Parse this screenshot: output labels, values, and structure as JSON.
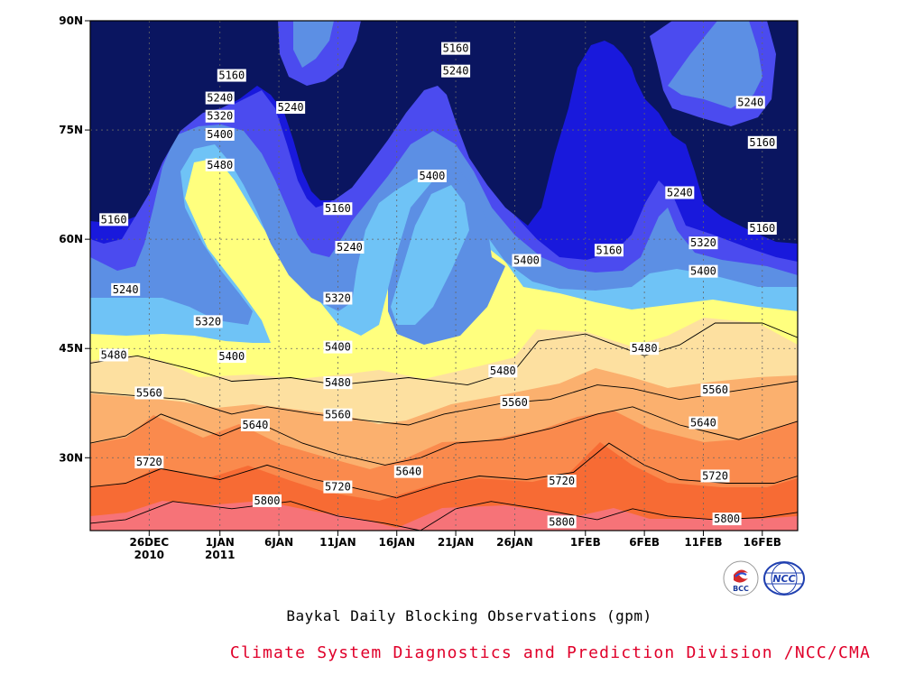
{
  "chart_data": {
    "type": "heatmap",
    "subtype": "filled-contour",
    "title": "Baykal Daily Blocking Observations (gpm)",
    "credit": "Climate System Diagnostics and Prediction Division /NCC/CMA",
    "logos": [
      "BCC",
      "NCC"
    ],
    "x_axis": {
      "ticks": [
        {
          "date": "2010-12-26",
          "label": "26DEC",
          "sublabel": "2010"
        },
        {
          "date": "2011-01-01",
          "label": "1JAN",
          "sublabel": "2011"
        },
        {
          "date": "2011-01-06",
          "label": "6JAN",
          "sublabel": ""
        },
        {
          "date": "2011-01-11",
          "label": "11JAN",
          "sublabel": ""
        },
        {
          "date": "2011-01-16",
          "label": "16JAN",
          "sublabel": ""
        },
        {
          "date": "2011-01-21",
          "label": "21JAN",
          "sublabel": ""
        },
        {
          "date": "2011-01-26",
          "label": "26JAN",
          "sublabel": ""
        },
        {
          "date": "2011-02-01",
          "label": "1FEB",
          "sublabel": ""
        },
        {
          "date": "2011-02-06",
          "label": "6FEB",
          "sublabel": ""
        },
        {
          "date": "2011-02-11",
          "label": "11FEB",
          "sublabel": ""
        },
        {
          "date": "2011-02-16",
          "label": "16FEB",
          "sublabel": ""
        }
      ],
      "range": [
        "2010-12-21",
        "2011-02-19"
      ]
    },
    "y_axis": {
      "ticks": [
        {
          "value": 30,
          "label": "30N"
        },
        {
          "value": 45,
          "label": "45N"
        },
        {
          "value": 60,
          "label": "60N"
        },
        {
          "value": 75,
          "label": "75N"
        },
        {
          "value": 90,
          "label": "90N"
        }
      ],
      "range": [
        20,
        90
      ]
    },
    "grid": true,
    "levels": [
      5160,
      5240,
      5320,
      5400,
      5480,
      5560,
      5640,
      5720,
      5800
    ],
    "level_colors": [
      "#0a1560",
      "#1919dc",
      "#4b4bef",
      "#5c8fe4",
      "#6fc3f6",
      "#ffff7e",
      "#fde0a0",
      "#fbb06e",
      "#fa8a4d",
      "#f76b34",
      "#f67378"
    ],
    "contour_lines": [
      {
        "level": 5800,
        "points": [
          [
            "2010-12-21",
            21
          ],
          [
            "2010-12-24",
            21.5
          ],
          [
            "2010-12-28",
            24
          ],
          [
            "2011-01-02",
            23
          ],
          [
            "2011-01-07",
            24
          ],
          [
            "2011-01-11",
            22
          ],
          [
            "2011-01-15",
            21
          ],
          [
            "2011-01-18",
            20
          ],
          [
            "2011-01-21",
            23
          ],
          [
            "2011-01-24",
            24
          ],
          [
            "2011-01-28",
            23
          ],
          [
            "2011-02-02",
            21.5
          ],
          [
            "2011-02-05",
            23
          ],
          [
            "2011-02-08",
            22
          ],
          [
            "2011-02-12",
            21.5
          ],
          [
            "2011-02-16",
            21.8
          ],
          [
            "2011-02-19",
            22.5
          ]
        ]
      },
      {
        "level": 5720,
        "points": [
          [
            "2010-12-21",
            26
          ],
          [
            "2010-12-24",
            26.5
          ],
          [
            "2010-12-27",
            28.5
          ],
          [
            "2011-01-01",
            27
          ],
          [
            "2011-01-05",
            29
          ],
          [
            "2011-01-09",
            27
          ],
          [
            "2011-01-12",
            26
          ],
          [
            "2011-01-16",
            24.5
          ],
          [
            "2011-01-20",
            26.5
          ],
          [
            "2011-01-23",
            27.5
          ],
          [
            "2011-01-27",
            27
          ],
          [
            "2011-01-31",
            28
          ],
          [
            "2011-02-03",
            32
          ],
          [
            "2011-02-06",
            29
          ],
          [
            "2011-02-09",
            27
          ],
          [
            "2011-02-13",
            26.5
          ],
          [
            "2011-02-17",
            26.5
          ],
          [
            "2011-02-19",
            27.5
          ]
        ]
      },
      {
        "level": 5640,
        "points": [
          [
            "2010-12-21",
            32
          ],
          [
            "2010-12-24",
            33
          ],
          [
            "2010-12-27",
            36
          ],
          [
            "2011-01-01",
            33
          ],
          [
            "2011-01-04",
            35
          ],
          [
            "2011-01-08",
            32
          ],
          [
            "2011-01-11",
            30.5
          ],
          [
            "2011-01-15",
            29
          ],
          [
            "2011-01-18",
            30
          ],
          [
            "2011-01-21",
            32
          ],
          [
            "2011-01-25",
            32.5
          ],
          [
            "2011-01-29",
            34
          ],
          [
            "2011-02-02",
            36
          ],
          [
            "2011-02-05",
            37
          ],
          [
            "2011-02-09",
            34.5
          ],
          [
            "2011-02-14",
            32.5
          ],
          [
            "2011-02-19",
            35
          ]
        ]
      },
      {
        "level": 5560,
        "points": [
          [
            "2010-12-21",
            39
          ],
          [
            "2010-12-25",
            38.5
          ],
          [
            "2010-12-29",
            38
          ],
          [
            "2011-01-02",
            36
          ],
          [
            "2011-01-05",
            37
          ],
          [
            "2011-01-09",
            36
          ],
          [
            "2011-01-14",
            35
          ],
          [
            "2011-01-17",
            34.5
          ],
          [
            "2011-01-20",
            36
          ],
          [
            "2011-01-25",
            37.5
          ],
          [
            "2011-01-29",
            38
          ],
          [
            "2011-02-02",
            40
          ],
          [
            "2011-02-05",
            39.5
          ],
          [
            "2011-02-09",
            38
          ],
          [
            "2011-02-13",
            39
          ],
          [
            "2011-02-17",
            40
          ],
          [
            "2011-02-19",
            40.5
          ]
        ]
      },
      {
        "level": 5480,
        "points": [
          [
            "2010-12-21",
            43
          ],
          [
            "2010-12-25",
            44
          ],
          [
            "2010-12-30",
            42
          ],
          [
            "2011-01-02",
            40.5
          ],
          [
            "2011-01-07",
            41
          ],
          [
            "2011-01-11",
            40
          ],
          [
            "2011-01-14",
            40.5
          ],
          [
            "2011-01-17",
            41
          ],
          [
            "2011-01-22",
            40
          ],
          [
            "2011-01-26",
            42
          ],
          [
            "2011-01-28",
            46
          ],
          [
            "2011-02-01",
            47
          ],
          [
            "2011-02-06",
            44
          ],
          [
            "2011-02-09",
            45.5
          ],
          [
            "2011-02-12",
            48.5
          ],
          [
            "2011-02-16",
            48.5
          ],
          [
            "2011-02-19",
            46.5
          ]
        ]
      }
    ],
    "contour_labels": [
      {
        "value": "5160",
        "date": "2010-12-23",
        "lat": 62.7
      },
      {
        "value": "5160",
        "date": "2011-01-02",
        "lat": 82.5
      },
      {
        "value": "5160",
        "date": "2011-01-11",
        "lat": 64.2
      },
      {
        "value": "5160",
        "date": "2011-01-21",
        "lat": 86.2
      },
      {
        "value": "5160",
        "date": "2011-02-03",
        "lat": 58.5
      },
      {
        "value": "5160",
        "date": "2011-02-16",
        "lat": 73.3
      },
      {
        "value": "5160",
        "date": "2011-02-16",
        "lat": 61.5
      },
      {
        "value": "5240",
        "date": "2010-12-24",
        "lat": 53.1
      },
      {
        "value": "5240",
        "date": "2011-01-01",
        "lat": 79.4
      },
      {
        "value": "5240",
        "date": "2011-01-07",
        "lat": 78.1
      },
      {
        "value": "5240",
        "date": "2011-01-12",
        "lat": 58.9
      },
      {
        "value": "5240",
        "date": "2011-01-21",
        "lat": 83.1
      },
      {
        "value": "5240",
        "date": "2011-02-09",
        "lat": 66.4
      },
      {
        "value": "5240",
        "date": "2011-02-15",
        "lat": 78.8
      },
      {
        "value": "5320",
        "date": "2011-01-01",
        "lat": 76.9
      },
      {
        "value": "5320",
        "date": "2010-12-31",
        "lat": 48.7
      },
      {
        "value": "5320",
        "date": "2011-01-11",
        "lat": 51.9
      },
      {
        "value": "5320",
        "date": "2011-02-11",
        "lat": 59.5
      },
      {
        "value": "5400",
        "date": "2011-01-01",
        "lat": 74.4
      },
      {
        "value": "5400",
        "date": "2011-01-02",
        "lat": 43.9
      },
      {
        "value": "5400",
        "date": "2011-01-11",
        "lat": 45.2
      },
      {
        "value": "5400",
        "date": "2011-01-19",
        "lat": 68.7
      },
      {
        "value": "5400",
        "date": "2011-01-27",
        "lat": 57.1
      },
      {
        "value": "5400",
        "date": "2011-02-11",
        "lat": 55.6
      },
      {
        "value": "5480",
        "date": "2011-01-01",
        "lat": 70.2
      },
      {
        "value": "5480",
        "date": "2010-12-23",
        "lat": 44.1
      },
      {
        "value": "5480",
        "date": "2011-01-11",
        "lat": 40.3
      },
      {
        "value": "5480",
        "date": "2011-01-25",
        "lat": 41.9
      },
      {
        "value": "5480",
        "date": "2011-02-06",
        "lat": 45.0
      },
      {
        "value": "5560",
        "date": "2010-12-26",
        "lat": 38.9
      },
      {
        "value": "5560",
        "date": "2011-01-11",
        "lat": 35.9
      },
      {
        "value": "5560",
        "date": "2011-01-26",
        "lat": 37.6
      },
      {
        "value": "5560",
        "date": "2011-02-12",
        "lat": 39.3
      },
      {
        "value": "5640",
        "date": "2011-01-04",
        "lat": 34.5
      },
      {
        "value": "5640",
        "date": "2011-01-17",
        "lat": 28.1
      },
      {
        "value": "5640",
        "date": "2011-02-11",
        "lat": 34.8
      },
      {
        "value": "5720",
        "date": "2010-12-26",
        "lat": 29.4
      },
      {
        "value": "5720",
        "date": "2011-01-11",
        "lat": 26.0
      },
      {
        "value": "5720",
        "date": "2011-01-30",
        "lat": 26.8
      },
      {
        "value": "5720",
        "date": "2011-02-12",
        "lat": 27.5
      },
      {
        "value": "5800",
        "date": "2011-01-05",
        "lat": 24.1
      },
      {
        "value": "5800",
        "date": "2011-01-30",
        "lat": 21.2
      },
      {
        "value": "5800",
        "date": "2011-02-13",
        "lat": 21.6
      }
    ]
  }
}
